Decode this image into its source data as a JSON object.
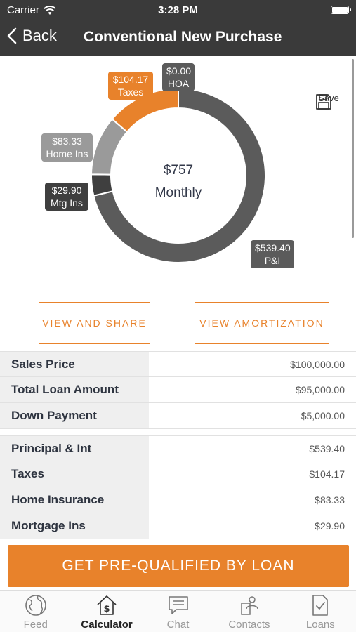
{
  "status": {
    "carrier": "Carrier",
    "time": "3:28 PM"
  },
  "nav": {
    "back_label": "Back",
    "title": "Conventional New Purchase"
  },
  "chart_data": {
    "type": "pie",
    "center_amount": "$757",
    "center_label": "Monthly",
    "slices": [
      {
        "label": "P&I",
        "amount": "$539.40",
        "value": 539.4,
        "color": "#5b5b5b"
      },
      {
        "label": "Mtg Ins",
        "amount": "$29.90",
        "value": 29.9,
        "color": "#3f3f3f"
      },
      {
        "label": "Home Ins",
        "amount": "$83.33",
        "value": 83.33,
        "color": "#9a9a9a"
      },
      {
        "label": "Taxes",
        "amount": "$104.17",
        "value": 104.17,
        "color": "#e8822b"
      },
      {
        "label": "HOA",
        "amount": "$0.00",
        "value": 0,
        "color": "#5b5b5b"
      }
    ]
  },
  "save_label": "Save",
  "actions": {
    "view_share": "VIEW AND SHARE",
    "view_amortization": "VIEW AMORTIZATION"
  },
  "loan_summary": [
    {
      "key": "Sales Price",
      "value": "$100,000.00"
    },
    {
      "key": "Total Loan Amount",
      "value": "$95,000.00"
    },
    {
      "key": "Down Payment",
      "value": "$5,000.00"
    }
  ],
  "payment_breakdown": [
    {
      "key": "Principal & Int",
      "value": "$539.40"
    },
    {
      "key": "Taxes",
      "value": "$104.17"
    },
    {
      "key": "Home Insurance",
      "value": "$83.33"
    },
    {
      "key": "Mortgage Ins",
      "value": "$29.90"
    }
  ],
  "cta_label": "GET PRE-QUALIFIED BY LOAN",
  "tabs": [
    {
      "label": "Feed",
      "icon": "globe-icon",
      "active": false
    },
    {
      "label": "Calculator",
      "icon": "house-dollar-icon",
      "active": true
    },
    {
      "label": "Chat",
      "icon": "chat-icon",
      "active": false
    },
    {
      "label": "Contacts",
      "icon": "contacts-icon",
      "active": false
    },
    {
      "label": "Loans",
      "icon": "document-check-icon",
      "active": false
    }
  ],
  "colors": {
    "accent": "#e8822b",
    "header": "#3a3a3a"
  }
}
